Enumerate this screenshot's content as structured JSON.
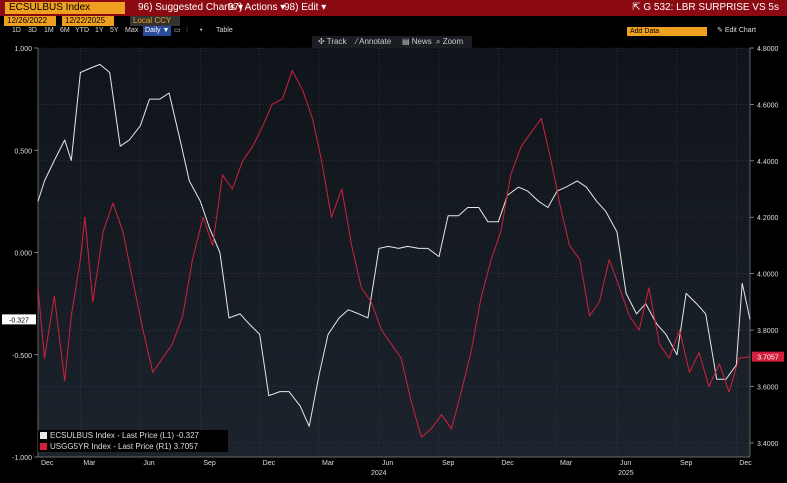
{
  "toolbar": {
    "ticker": "ECSULBUS Index",
    "suggested": "96) Suggested Charts ▾",
    "actions": "97) Actions ▾",
    "edit": "98) Edit ▾",
    "title": "G 532: LBR SURPRISE VS 5s",
    "start_date": "12/26/2022",
    "end_date": "12/22/2025",
    "currency": "Local CCY",
    "ranges": [
      "1D",
      "3D",
      "1M",
      "6M",
      "YTD",
      "1Y",
      "5Y",
      "Max"
    ],
    "frequency": "Daily ▼",
    "table": "Table",
    "add_data": "Add Data",
    "edit_chart": "Edit Chart",
    "tools": [
      "Track",
      "Annotate",
      "News",
      "Zoom"
    ]
  },
  "colors": {
    "l1": "#e8e8e8",
    "r1": "#d2203c",
    "l1_label_bg": "#ffffff",
    "r1_label_bg": "#d2203c",
    "plot_bg_top": "#10141a",
    "plot_bg_bottom": "#1c232c"
  },
  "chart_data": {
    "type": "line",
    "x_range": [
      "2022-12-26",
      "2025-12-22"
    ],
    "x_month_labels": [
      "Dec",
      "Mar",
      "Jun",
      "Sep",
      "Dec",
      "Mar",
      "Jun",
      "Sep",
      "Dec"
    ],
    "x_year_labels": [
      "2024",
      "2025"
    ],
    "left_axis": {
      "ticks": [
        "1.000",
        "0.500",
        "0.000",
        "-0.500",
        "-1.000"
      ],
      "ylim": [
        -1.0,
        1.0
      ]
    },
    "right_axis": {
      "ticks": [
        "4.8000",
        "4.6000",
        "4.4000",
        "4.2000",
        "4.0000",
        "3.8000",
        "3.6000",
        "3.4000"
      ],
      "ylim": [
        3.35,
        4.8
      ]
    },
    "grid": true,
    "legend_position": "bottom-left",
    "series": [
      {
        "name": "ECSULBUS Index - Last Price (L1)",
        "last": "-0.327",
        "axis": "left",
        "x": [
          "2022-12-26",
          "2023-01-05",
          "2023-01-20",
          "2023-02-05",
          "2023-02-15",
          "2023-03-01",
          "2023-03-15",
          "2023-03-31",
          "2023-04-15",
          "2023-05-01",
          "2023-05-15",
          "2023-06-01",
          "2023-06-15",
          "2023-07-01",
          "2023-07-15",
          "2023-08-01",
          "2023-08-15",
          "2023-09-01",
          "2023-09-15",
          "2023-10-01",
          "2023-10-15",
          "2023-11-01",
          "2023-11-15",
          "2023-12-01",
          "2023-12-15",
          "2024-01-01",
          "2024-01-15",
          "2024-02-01",
          "2024-02-15",
          "2024-03-01",
          "2024-03-15",
          "2024-04-01",
          "2024-04-15",
          "2024-05-01",
          "2024-05-15",
          "2024-06-01",
          "2024-06-15",
          "2024-07-01",
          "2024-07-15",
          "2024-08-01",
          "2024-08-15",
          "2024-09-01",
          "2024-09-15",
          "2024-10-01",
          "2024-10-15",
          "2024-11-01",
          "2024-11-15",
          "2024-12-01",
          "2024-12-15",
          "2025-01-01",
          "2025-01-15",
          "2025-02-01",
          "2025-02-15",
          "2025-03-01",
          "2025-03-15",
          "2025-04-01",
          "2025-04-15",
          "2025-05-01",
          "2025-05-15",
          "2025-06-01",
          "2025-06-15",
          "2025-07-01",
          "2025-07-15",
          "2025-08-01",
          "2025-08-15",
          "2025-09-01",
          "2025-09-15",
          "2025-10-01",
          "2025-10-15",
          "2025-11-01",
          "2025-11-15",
          "2025-12-01",
          "2025-12-10",
          "2025-12-22"
        ],
        "values": [
          0.25,
          0.35,
          0.45,
          0.55,
          0.45,
          0.88,
          0.9,
          0.92,
          0.88,
          0.52,
          0.55,
          0.62,
          0.75,
          0.75,
          0.78,
          0.55,
          0.35,
          0.25,
          0.12,
          0.0,
          -0.32,
          -0.3,
          -0.35,
          -0.4,
          -0.7,
          -0.68,
          -0.68,
          -0.75,
          -0.85,
          -0.6,
          -0.4,
          -0.32,
          -0.28,
          -0.3,
          -0.32,
          0.02,
          0.03,
          0.02,
          0.03,
          0.02,
          0.02,
          -0.02,
          0.18,
          0.18,
          0.22,
          0.22,
          0.15,
          0.15,
          0.28,
          0.32,
          0.3,
          0.25,
          0.22,
          0.3,
          0.32,
          0.35,
          0.32,
          0.25,
          0.2,
          0.1,
          -0.2,
          -0.3,
          -0.25,
          -0.35,
          -0.4,
          -0.5,
          -0.2,
          -0.25,
          -0.3,
          -0.62,
          -0.62,
          -0.55,
          -0.15,
          -0.327
        ]
      },
      {
        "name": "USGG5YR Index - Last Price (R1)",
        "last": "3.7057",
        "axis": "right",
        "x": [
          "2022-12-26",
          "2023-01-05",
          "2023-01-20",
          "2023-02-05",
          "2023-02-15",
          "2023-03-01",
          "2023-03-08",
          "2023-03-20",
          "2023-04-05",
          "2023-04-20",
          "2023-05-05",
          "2023-05-20",
          "2023-06-05",
          "2023-06-20",
          "2023-07-05",
          "2023-07-20",
          "2023-08-05",
          "2023-08-20",
          "2023-09-05",
          "2023-09-20",
          "2023-10-05",
          "2023-10-20",
          "2023-11-05",
          "2023-11-20",
          "2023-12-05",
          "2023-12-20",
          "2024-01-05",
          "2024-01-20",
          "2024-02-05",
          "2024-02-20",
          "2024-03-05",
          "2024-03-20",
          "2024-04-05",
          "2024-04-20",
          "2024-05-05",
          "2024-05-20",
          "2024-06-05",
          "2024-06-20",
          "2024-07-05",
          "2024-07-20",
          "2024-08-05",
          "2024-08-20",
          "2024-09-05",
          "2024-09-20",
          "2024-10-05",
          "2024-10-20",
          "2024-11-05",
          "2024-11-20",
          "2024-12-05",
          "2024-12-20",
          "2025-01-05",
          "2025-01-20",
          "2025-02-05",
          "2025-02-20",
          "2025-03-05",
          "2025-03-20",
          "2025-04-05",
          "2025-04-20",
          "2025-05-05",
          "2025-05-20",
          "2025-06-05",
          "2025-06-20",
          "2025-07-05",
          "2025-07-20",
          "2025-08-05",
          "2025-08-20",
          "2025-09-05",
          "2025-09-20",
          "2025-10-05",
          "2025-10-20",
          "2025-11-05",
          "2025-11-20",
          "2025-12-05",
          "2025-12-22"
        ],
        "values": [
          3.95,
          3.7,
          3.92,
          3.62,
          3.85,
          4.05,
          4.2,
          3.9,
          4.15,
          4.25,
          4.15,
          3.98,
          3.8,
          3.65,
          3.7,
          3.75,
          3.85,
          4.05,
          4.2,
          4.1,
          4.35,
          4.3,
          4.4,
          4.45,
          4.52,
          4.6,
          4.62,
          4.72,
          4.65,
          4.55,
          4.4,
          4.2,
          4.3,
          4.1,
          3.95,
          3.9,
          3.8,
          3.75,
          3.7,
          3.55,
          3.42,
          3.45,
          3.5,
          3.45,
          3.58,
          3.72,
          3.92,
          4.05,
          4.15,
          4.35,
          4.45,
          4.5,
          4.55,
          4.4,
          4.25,
          4.1,
          4.05,
          3.85,
          3.9,
          4.05,
          3.95,
          3.85,
          3.8,
          3.95,
          3.75,
          3.7,
          3.8,
          3.65,
          3.72,
          3.6,
          3.68,
          3.58,
          3.7,
          3.7057
        ]
      }
    ]
  }
}
